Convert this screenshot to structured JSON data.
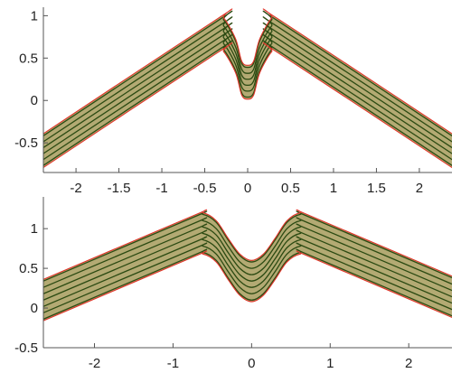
{
  "chart_data": [
    {
      "type": "line",
      "title": "",
      "xlabel": "",
      "ylabel": "",
      "xlim": [
        -2.38,
        2.38
      ],
      "ylim": [
        -0.85,
        1.1
      ],
      "xticks": [
        -2,
        -1.5,
        -1,
        -0.5,
        0,
        0.5,
        1,
        1.5,
        2
      ],
      "xtick_labels": [
        "-2",
        "-1.5",
        "-1",
        "-0.5",
        "0",
        "0.5",
        "1",
        "1.5",
        "2"
      ],
      "yticks": [
        -0.5,
        0,
        0.5,
        1
      ],
      "ytick_labels": [
        "-0.5",
        "0",
        "0.5",
        "1"
      ],
      "grid": false,
      "band": {
        "centerline": [
          [
            -2.4,
            -0.78
          ],
          [
            -0.35,
            0.59
          ],
          [
            -0.28,
            0.6
          ],
          [
            -0.14,
            0.35
          ],
          [
            -0.07,
            0.09
          ],
          [
            0.0,
            0.04
          ],
          [
            0.07,
            0.09
          ],
          [
            0.14,
            0.35
          ],
          [
            0.28,
            0.6
          ],
          [
            0.35,
            0.59
          ],
          [
            2.4,
            -0.78
          ]
        ],
        "offsets": [
          0.0,
          0.07,
          0.14,
          0.21,
          0.28,
          0.35
        ],
        "edge_offsets": [
          -0.025,
          0.375
        ]
      },
      "colors": {
        "fill": "#b3aa73",
        "line": "#2b4a12",
        "edge": "#e0342a",
        "axis": "#555555"
      }
    },
    {
      "type": "line",
      "title": "",
      "xlabel": "",
      "ylabel": "",
      "xlim": [
        -2.65,
        2.55
      ],
      "ylim": [
        -0.5,
        1.4
      ],
      "xticks": [
        -2,
        -1,
        0,
        1,
        2
      ],
      "xtick_labels": [
        "-2",
        "-1",
        "0",
        "1",
        "2"
      ],
      "yticks": [
        -0.5,
        0,
        0.5,
        1
      ],
      "ytick_labels": [
        "-0.5",
        "0",
        "0.5",
        "1"
      ],
      "grid": false,
      "band": {
        "centerline": [
          [
            -2.65,
            -0.14
          ],
          [
            -0.75,
            0.66
          ],
          [
            -0.62,
            0.7
          ],
          [
            -0.45,
            0.6
          ],
          [
            -0.3,
            0.38
          ],
          [
            -0.15,
            0.18
          ],
          [
            0.0,
            0.1
          ],
          [
            0.15,
            0.18
          ],
          [
            0.3,
            0.38
          ],
          [
            0.45,
            0.6
          ],
          [
            0.62,
            0.7
          ],
          [
            0.75,
            0.66
          ],
          [
            2.65,
            -0.14
          ]
        ],
        "offsets": [
          0.0,
          0.08,
          0.16,
          0.24,
          0.32,
          0.4,
          0.48
        ],
        "edge_offsets": [
          -0.02,
          0.5
        ]
      },
      "colors": {
        "fill": "#b3aa73",
        "line": "#2b4a12",
        "edge": "#e0342a",
        "axis": "#555555"
      }
    }
  ]
}
